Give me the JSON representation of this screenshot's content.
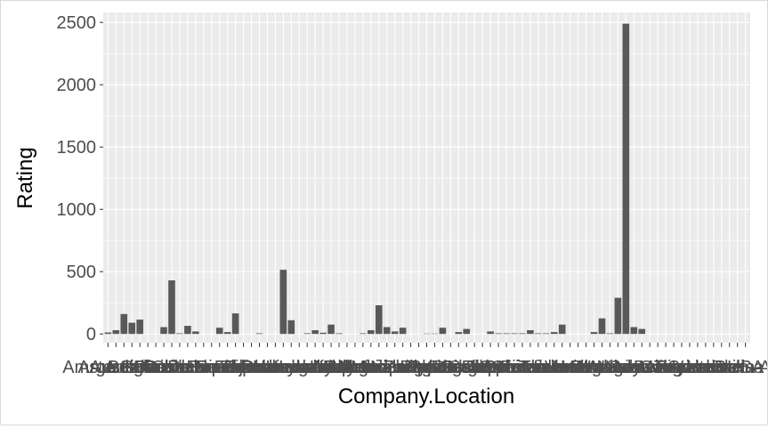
{
  "chart_data": {
    "type": "bar",
    "xlabel": "Company.Location",
    "ylabel": "Rating",
    "ylim": [
      -70,
      2580
    ],
    "yticks": [
      0,
      500,
      1000,
      1500,
      2000,
      2500
    ],
    "grid": true,
    "legend": "none",
    "colors": {
      "panel": "#ebebeb",
      "grid": "#ffffff",
      "bar": "#595959",
      "text": "#4d4d4d",
      "title": "#000000"
    },
    "categories": [
      "Amsterdam",
      "Argentina",
      "Australia",
      "Austria",
      "Belgium",
      "Bolivia",
      "Brazil",
      "Canada",
      "Chile",
      "Colombia",
      "Costa Rica",
      "Czech Republic",
      "Denmark",
      "Domincan Republic",
      "Ecuador",
      "Eucador",
      "Fiji",
      "Finland",
      "France",
      "Germany",
      "Ghana",
      "Grenada",
      "Guatemala",
      "Honduras",
      "Hungary",
      "Iceland",
      "India",
      "Ireland",
      "Israel",
      "Italy",
      "Japan",
      "Lithuania",
      "Madagascar",
      "Martinique",
      "Mexico",
      "Netherlands",
      "New Zealand",
      "Nicaragua",
      "Niacragua",
      "Peru",
      "Philippines",
      "Poland",
      "Portugal",
      "Puerto Rico",
      "Russia",
      "Sao Tome",
      "Scotland",
      "Singapore",
      "South Africa",
      "South Korea",
      "Spain",
      "St. Lucia",
      "Suriname",
      "Sweden",
      "Switzerland",
      "Taiwan",
      "Thailand",
      "Unknown",
      "U.K.",
      "U.S.A.",
      "Venezuela",
      "Vietnam",
      "Wales",
      "Uganda",
      "Niger",
      "Kenya",
      "Laos",
      "Liberia",
      "Cameroon",
      "Belize",
      "Congo",
      "Malaysia",
      "Vanuatu",
      "Tanzania",
      "Zimbabwe",
      "Sri Lanka",
      "Hawaii",
      "Venezuela A",
      "Bali",
      "Burma",
      "USA"
    ],
    "values": [
      12,
      30,
      160,
      90,
      115,
      0,
      0,
      55,
      430,
      5,
      65,
      20,
      0,
      0,
      50,
      15,
      165,
      0,
      0,
      5,
      0,
      0,
      515,
      110,
      0,
      5,
      30,
      10,
      75,
      5,
      0,
      0,
      5,
      30,
      230,
      55,
      20,
      50,
      0,
      0,
      3,
      3,
      50,
      0,
      15,
      40,
      0,
      0,
      20,
      5,
      5,
      5,
      5,
      30,
      5,
      5,
      15,
      75,
      0,
      0,
      0,
      15,
      125,
      5,
      290,
      2490,
      55,
      40,
      0,
      0,
      0,
      0,
      0,
      0,
      0,
      0,
      0,
      0,
      0,
      0,
      0
    ]
  }
}
